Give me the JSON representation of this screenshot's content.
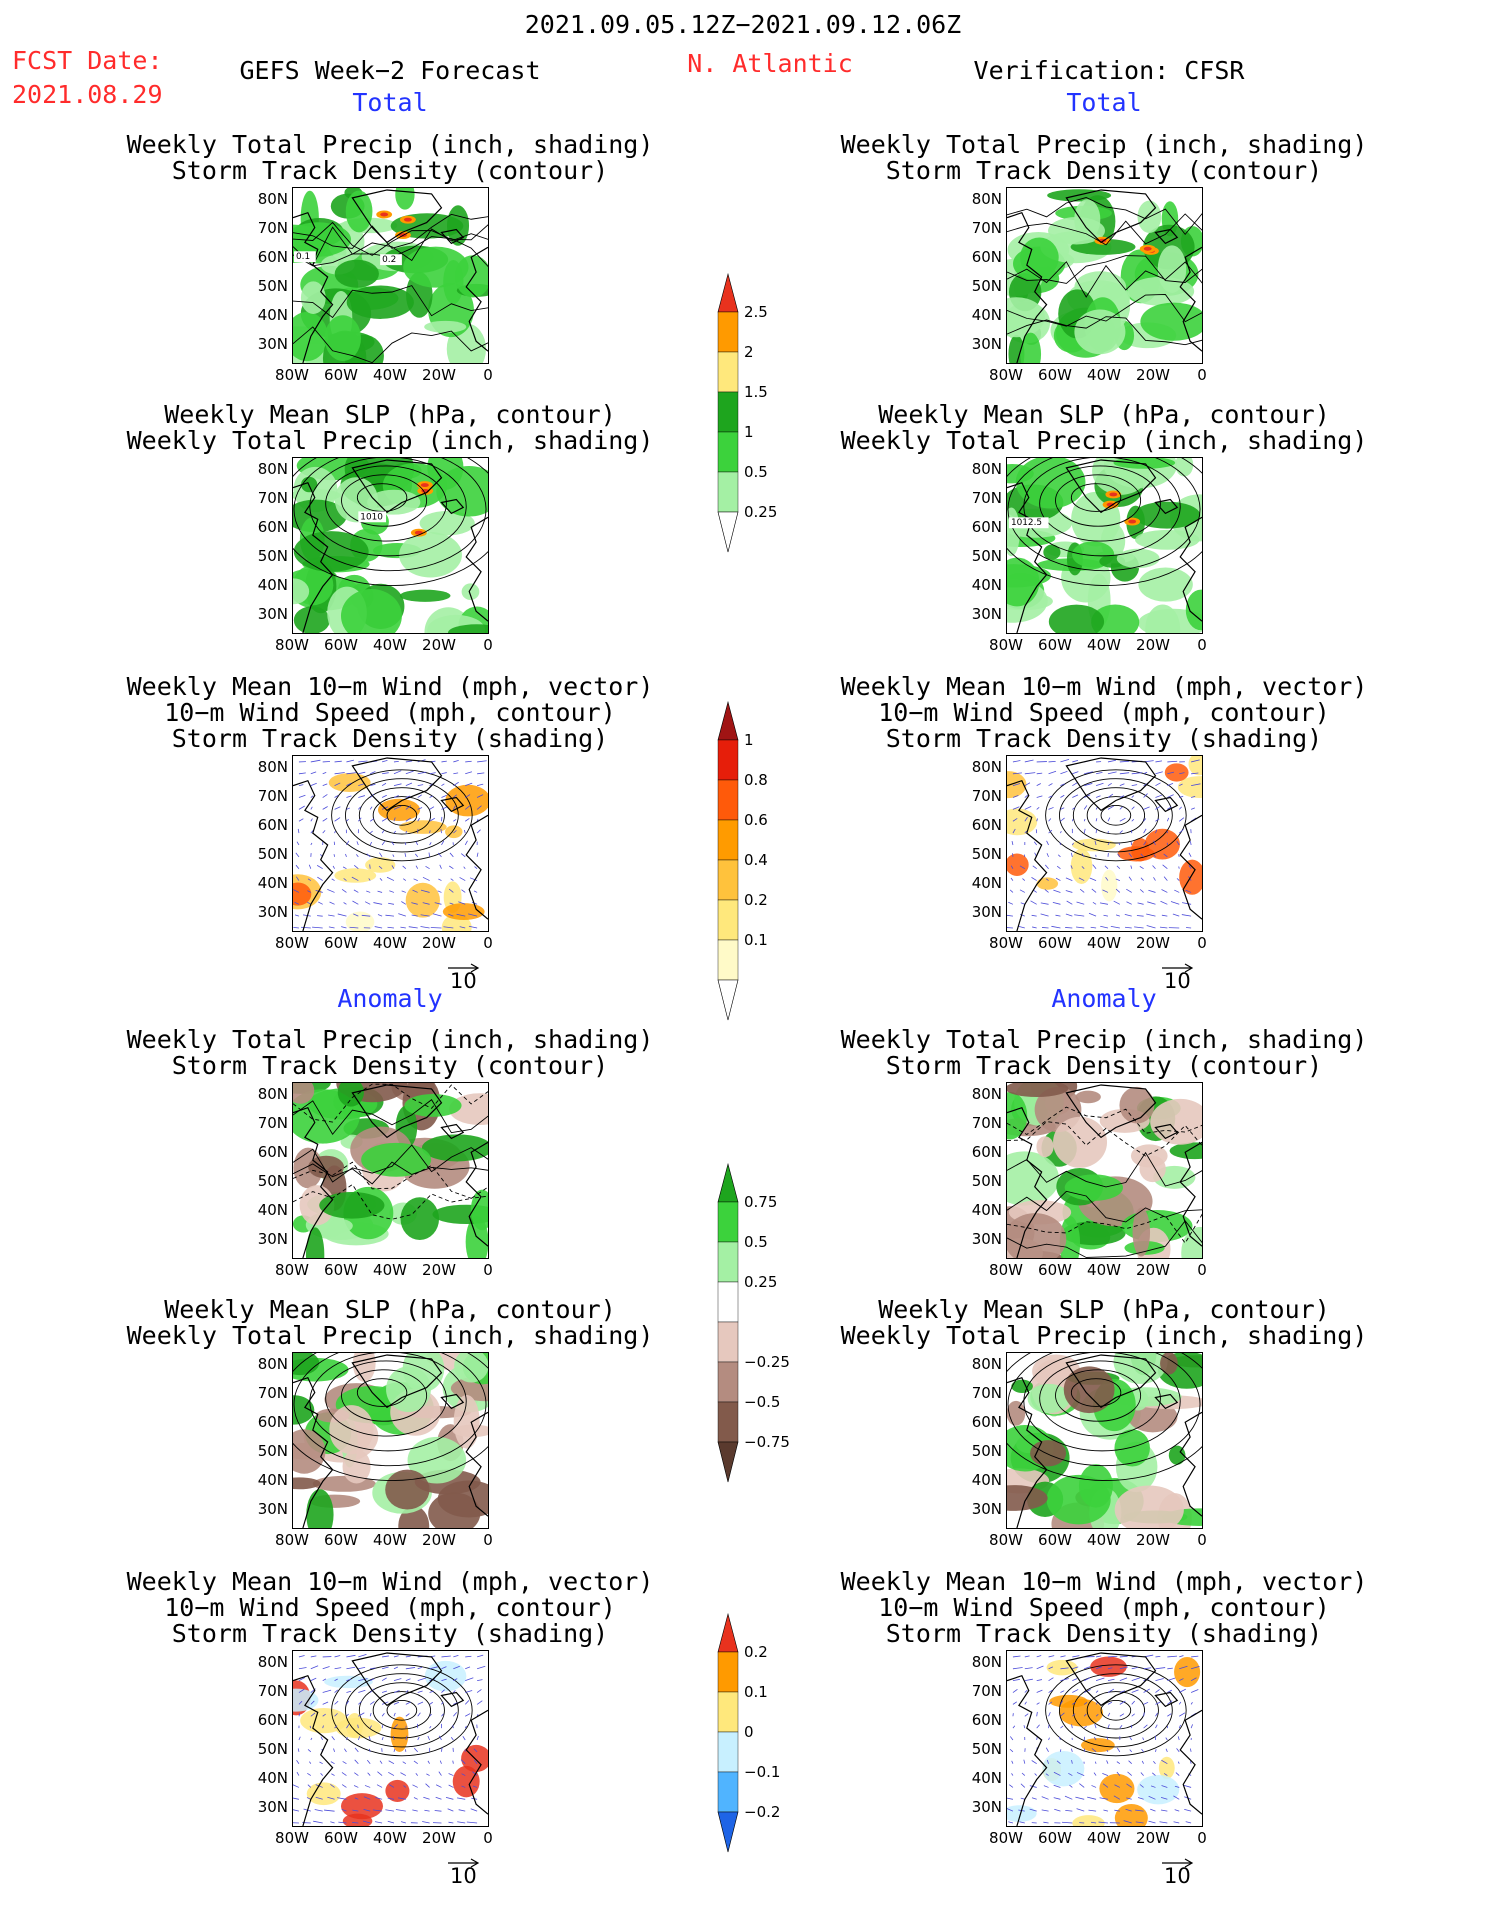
{
  "header": {
    "date_range": "2021.09.05.12Z−2021.09.12.06Z",
    "fcst_label": "FCST Date:",
    "fcst_date": "2021.08.29",
    "left_title": "GEFS Week−2 Forecast",
    "region": "N. Atlantic",
    "right_title": "Verification: CFSR",
    "total": "Total",
    "anomaly": "Anomaly"
  },
  "titles": {
    "precip_track": [
      "Weekly Total Precip (inch, shading)",
      "Storm Track Density (contour)"
    ],
    "slp_precip": [
      "Weekly Mean SLP (hPa, contour)",
      "Weekly Total Precip (inch, shading)"
    ],
    "wind_track": [
      "Weekly Mean 10−m Wind (mph, vector)",
      "10−m Wind Speed (mph, contour)",
      "Storm Track Density (shading)"
    ]
  },
  "axes": {
    "lat_ticks": [
      "80N",
      "70N",
      "60N",
      "50N",
      "40N",
      "30N"
    ],
    "lon_ticks": [
      "80W",
      "60W",
      "40W",
      "20W",
      "0"
    ]
  },
  "vector_ref": "10",
  "contour_labels": {
    "fcst_track": [
      "0.1",
      "0.2"
    ],
    "fcst_slp": "1010",
    "cfsr_slp": "1012.5"
  },
  "colorbars": {
    "precip_total": {
      "labels": [
        "2.5",
        "2",
        "1.5",
        "1",
        "0.5",
        "0.25"
      ],
      "colors": [
        "#e8321e",
        "#ff9a00",
        "#ffe87c",
        "#1ea51e",
        "#3cd23c",
        "#a4f0a4",
        "#ffffff"
      ]
    },
    "track_total": {
      "labels": [
        "1",
        "0.8",
        "0.6",
        "0.4",
        "0.2",
        "0.1"
      ],
      "colors": [
        "#a01414",
        "#e61e0a",
        "#ff5a0a",
        "#ff9b00",
        "#ffc23c",
        "#ffe87c",
        "#fffac8",
        "#ffffff"
      ]
    },
    "precip_anom": {
      "labels": [
        "0.75",
        "0.5",
        "0.25",
        "−0.25",
        "−0.5",
        "−0.75"
      ],
      "colors": [
        "#1ea51e",
        "#3cd23c",
        "#a4f0a4",
        "#ffffff",
        "#e6c8be",
        "#b48c80",
        "#825a4b",
        "#5a3a2e"
      ]
    },
    "track_anom": {
      "labels": [
        "0.2",
        "0.1",
        "0",
        "−0.1",
        "−0.2"
      ],
      "colors": [
        "#e8321e",
        "#ff9a00",
        "#ffe87c",
        "#c8f0ff",
        "#50b4ff",
        "#1e64e6"
      ]
    }
  },
  "chart_data": [
    {
      "type": "heatmap",
      "title": "Weekly Total Precip (inch, shading) / Storm Track Density (contour)",
      "panel": "GEFS Week-2 Forecast Total",
      "xlabel": "",
      "ylabel": "",
      "levels": [
        0.25,
        0.5,
        1,
        1.5,
        2,
        2.5
      ],
      "contour_labels": [
        "0.1",
        "0.2"
      ]
    },
    {
      "type": "heatmap",
      "title": "Weekly Mean SLP (hPa, contour) / Weekly Total Precip (inch, shading)",
      "panel": "GEFS Week-2 Forecast Total",
      "levels": [
        0.25,
        0.5,
        1,
        1.5,
        2,
        2.5
      ],
      "contour_labels": [
        "1010"
      ]
    },
    {
      "type": "heatmap",
      "title": "Weekly Mean 10-m Wind (mph, vector) / 10-m Wind Speed (mph, contour) / Storm Track Density (shading)",
      "panel": "GEFS Week-2 Forecast Total",
      "levels": [
        0.1,
        0.2,
        0.4,
        0.6,
        0.8,
        1
      ],
      "vector_ref": 10
    },
    {
      "type": "heatmap",
      "title": "Weekly Total Precip (inch, shading) / Storm Track Density (contour)",
      "panel": "Verification: CFSR Total",
      "levels": [
        0.25,
        0.5,
        1,
        1.5,
        2,
        2.5
      ]
    },
    {
      "type": "heatmap",
      "title": "Weekly Mean SLP (hPa, contour) / Weekly Total Precip (inch, shading)",
      "panel": "Verification: CFSR Total",
      "levels": [
        0.25,
        0.5,
        1,
        1.5,
        2,
        2.5
      ],
      "contour_labels": [
        "1012.5"
      ]
    },
    {
      "type": "heatmap",
      "title": "Weekly Mean 10-m Wind (mph, vector) / 10-m Wind Speed (mph, contour) / Storm Track Density (shading)",
      "panel": "Verification: CFSR Total",
      "levels": [
        0.1,
        0.2,
        0.4,
        0.6,
        0.8,
        1
      ],
      "vector_ref": 10
    },
    {
      "type": "heatmap",
      "title": "Weekly Total Precip (inch, shading) / Storm Track Density (contour)",
      "panel": "GEFS Week-2 Forecast Anomaly",
      "levels": [
        -0.75,
        -0.5,
        -0.25,
        0.25,
        0.5,
        0.75
      ]
    },
    {
      "type": "heatmap",
      "title": "Weekly Mean SLP (hPa, contour) / Weekly Total Precip (inch, shading)",
      "panel": "GEFS Week-2 Forecast Anomaly",
      "levels": [
        -0.75,
        -0.5,
        -0.25,
        0.25,
        0.5,
        0.75
      ]
    },
    {
      "type": "heatmap",
      "title": "Weekly Mean 10-m Wind (mph, vector) / 10-m Wind Speed (mph, contour) / Storm Track Density (shading)",
      "panel": "GEFS Week-2 Forecast Anomaly",
      "levels": [
        -0.2,
        -0.1,
        0,
        0.1,
        0.2
      ],
      "vector_ref": 10
    },
    {
      "type": "heatmap",
      "title": "Weekly Total Precip (inch, shading) / Storm Track Density (contour)",
      "panel": "Verification: CFSR Anomaly",
      "levels": [
        -0.75,
        -0.5,
        -0.25,
        0.25,
        0.5,
        0.75
      ]
    },
    {
      "type": "heatmap",
      "title": "Weekly Mean SLP (hPa, contour) / Weekly Total Precip (inch, shading)",
      "panel": "Verification: CFSR Anomaly",
      "levels": [
        -0.75,
        -0.5,
        -0.25,
        0.25,
        0.5,
        0.75
      ]
    },
    {
      "type": "heatmap",
      "title": "Weekly Mean 10-m Wind (mph, vector) / 10-m Wind Speed (mph, contour) / Storm Track Density (shading)",
      "panel": "Verification: CFSR Anomaly",
      "levels": [
        -0.2,
        -0.1,
        0,
        0.1,
        0.2
      ],
      "vector_ref": 10
    }
  ]
}
